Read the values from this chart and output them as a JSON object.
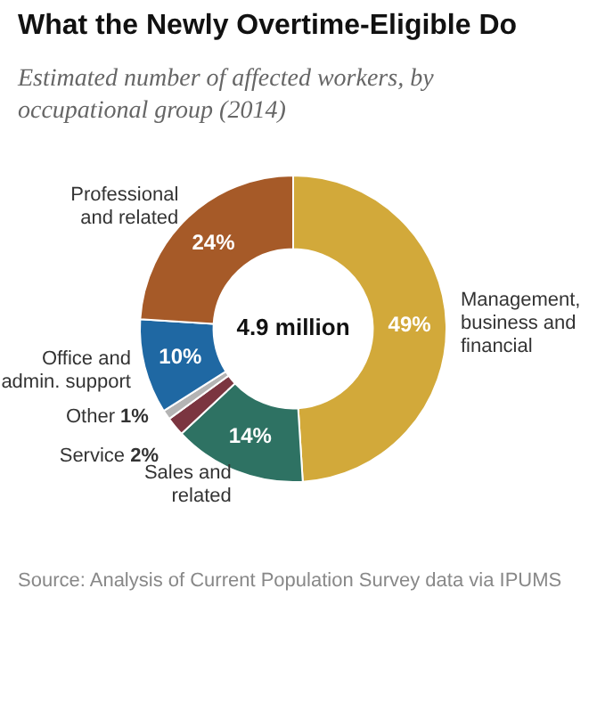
{
  "chart_data": {
    "type": "donut",
    "title": "What the Newly Overtime-Eligible Do",
    "subtitle": "Estimated number of affected workers, by occupational group (2014)",
    "categories": [
      "Management, business and financial",
      "Sales and related",
      "Service",
      "Other",
      "Office and admin. support",
      "Professional and related"
    ],
    "values": [
      49,
      14,
      2,
      1,
      10,
      24
    ],
    "colors": [
      "#d2a93a",
      "#2e7263",
      "#7b3540",
      "#b4b4b4",
      "#1f68a3",
      "#a65a28"
    ],
    "value_labels": [
      "49%",
      "14%",
      "2%",
      "1%",
      "10%",
      "24%"
    ],
    "legend": false,
    "annotations": [
      "4.9 million",
      "Source: Analysis of Current Population Survey data via IPUMS"
    ]
  }
}
